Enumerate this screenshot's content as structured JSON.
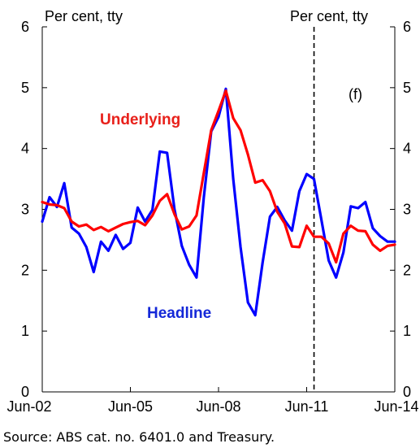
{
  "chart_data": {
    "type": "line",
    "left_axis_title": "Per cent, tty",
    "right_axis_title": "Per cent, tty",
    "forecast_label": "(f)",
    "source": "Source:  ABS cat. no. 6401.0 and Treasury.",
    "x_ticks": [
      "Jun-02",
      "Jun-05",
      "Jun-08",
      "Jun-11",
      "Jun-14"
    ],
    "y_ticks": [
      "0",
      "1",
      "2",
      "3",
      "4",
      "5",
      "6"
    ],
    "ylim": [
      0,
      6
    ],
    "xlim": [
      0,
      48
    ],
    "forecast_start": 37,
    "grid": false,
    "x": [
      0,
      1,
      2,
      3,
      4,
      5,
      6,
      7,
      8,
      9,
      10,
      11,
      12,
      13,
      14,
      15,
      16,
      17,
      18,
      19,
      20,
      21,
      22,
      23,
      24,
      25,
      26,
      27,
      28,
      29,
      30,
      31,
      32,
      33,
      34,
      35,
      36,
      37,
      38,
      39,
      40,
      41,
      42,
      43,
      44,
      45,
      46,
      47,
      48
    ],
    "series": [
      {
        "name": "Underlying",
        "color": "#ff0000",
        "label_color": "#e8201a",
        "values": [
          3.12,
          3.08,
          3.07,
          3.02,
          2.8,
          2.72,
          2.75,
          2.66,
          2.71,
          2.64,
          2.7,
          2.76,
          2.79,
          2.81,
          2.74,
          2.9,
          3.14,
          3.25,
          2.92,
          2.67,
          2.72,
          2.9,
          3.6,
          4.3,
          4.62,
          4.95,
          4.5,
          4.3,
          3.9,
          3.44,
          3.48,
          3.3,
          2.96,
          2.77,
          2.39,
          2.38,
          2.73,
          2.55,
          2.55,
          2.44,
          2.13,
          2.6,
          2.73,
          2.65,
          2.64,
          2.42,
          2.32,
          2.4,
          2.42
        ]
      },
      {
        "name": "Headline",
        "color": "#0000ff",
        "label_color": "#1428d8",
        "values": [
          2.8,
          3.2,
          3.04,
          3.43,
          2.7,
          2.6,
          2.38,
          1.97,
          2.47,
          2.32,
          2.58,
          2.35,
          2.45,
          3.03,
          2.8,
          2.99,
          3.95,
          3.93,
          3.0,
          2.4,
          2.09,
          1.88,
          3.2,
          4.28,
          4.52,
          4.98,
          3.5,
          2.38,
          1.47,
          1.26,
          2.13,
          2.88,
          3.04,
          2.82,
          2.65,
          3.3,
          3.58,
          3.5,
          2.83,
          2.16,
          1.88,
          2.29,
          3.05,
          3.02,
          3.12,
          2.69,
          2.56,
          2.47,
          2.47
        ]
      }
    ]
  }
}
